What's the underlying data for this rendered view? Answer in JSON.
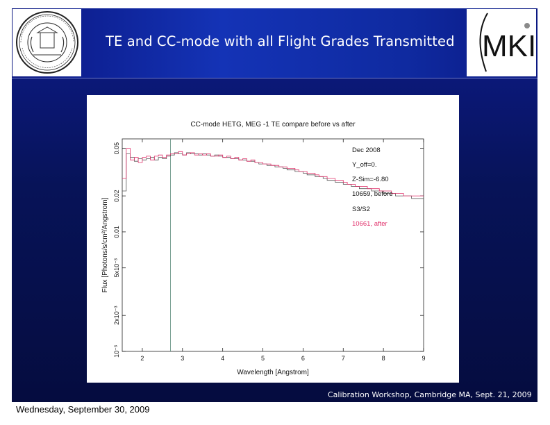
{
  "slide": {
    "title": "TE and CC-mode with all Flight Grades Transmitted",
    "footer": "Calibration Workshop, Cambridge MA, Sept. 21, 2009",
    "date_caption": "Wednesday, September 30, 2009",
    "logos": {
      "left": "mit-seal-logo",
      "right": "mki-logo",
      "right_text": "MKI"
    }
  },
  "chart_data": {
    "type": "line",
    "title": "CC-mode HETG, MEG -1 TE compare before vs after",
    "xlabel": "Wavelength [Angstrom]",
    "ylabel": "Flux [Photons/s/cm²/Angstrom]",
    "xlim": [
      1.5,
      9
    ],
    "ylim": [
      0.001,
      0.06
    ],
    "y_scale": "log",
    "x_ticks": [
      "2",
      "3",
      "4",
      "5",
      "6",
      "7",
      "8",
      "9"
    ],
    "y_ticks": [
      {
        "value": 0.001,
        "label": "10⁻³"
      },
      {
        "value": 0.002,
        "label": "2x10⁻³"
      },
      {
        "value": 0.005,
        "label": "5x10⁻³"
      },
      {
        "value": 0.01,
        "label": "0.01"
      },
      {
        "value": 0.02,
        "label": "0.02"
      },
      {
        "value": 0.05,
        "label": "0.05"
      }
    ],
    "annotations": [
      "Dec 2008",
      "Y_off=0.",
      "Z-Sim=-6.80",
      "10659, before",
      "S3/S2",
      "10661, after"
    ],
    "vertical_line_x": 2.7,
    "colors": {
      "before": "#555555",
      "after": "#e0306a",
      "vline": "#5a8a7a"
    },
    "x": [
      1.55,
      1.65,
      1.75,
      1.85,
      1.95,
      2.05,
      2.15,
      2.25,
      2.35,
      2.45,
      2.55,
      2.65,
      2.75,
      2.85,
      2.95,
      3.05,
      3.15,
      3.25,
      3.35,
      3.45,
      3.55,
      3.65,
      3.75,
      3.85,
      3.95,
      4.05,
      4.15,
      4.25,
      4.35,
      4.45,
      4.55,
      4.65,
      4.75,
      4.85,
      4.95,
      5.05,
      5.15,
      5.25,
      5.35,
      5.45,
      5.55,
      5.65,
      5.75,
      5.85,
      5.95,
      6.05,
      6.15,
      6.25,
      6.35,
      6.45,
      6.55,
      6.65,
      6.75,
      6.85,
      6.95,
      7.05,
      7.15,
      7.25,
      7.35,
      7.45,
      7.55,
      7.65,
      7.75,
      7.85,
      7.95,
      8.05,
      8.15,
      8.25,
      8.35,
      8.45,
      8.55,
      8.65,
      8.75,
      8.85,
      8.95
    ],
    "series": [
      {
        "name": "10659, before",
        "values": [
          0.022,
          0.045,
          0.042,
          0.039,
          0.041,
          0.04,
          0.041,
          0.042,
          0.04,
          0.042,
          0.041,
          0.043,
          0.044,
          0.046,
          0.045,
          0.044,
          0.046,
          0.045,
          0.045,
          0.044,
          0.045,
          0.044,
          0.043,
          0.044,
          0.043,
          0.042,
          0.042,
          0.041,
          0.041,
          0.04,
          0.04,
          0.039,
          0.039,
          0.038,
          0.037,
          0.037,
          0.036,
          0.036,
          0.035,
          0.035,
          0.034,
          0.033,
          0.033,
          0.032,
          0.032,
          0.031,
          0.03,
          0.03,
          0.029,
          0.029,
          0.028,
          0.027,
          0.027,
          0.026,
          0.026,
          0.025,
          0.025,
          0.024,
          0.024,
          0.023,
          0.023,
          0.023,
          0.022,
          0.022,
          0.022,
          0.021,
          0.021,
          0.021,
          0.02,
          0.02,
          0.02,
          0.02,
          0.019,
          0.019,
          0.019
        ]
      },
      {
        "name": "10661, after",
        "values": [
          0.028,
          0.05,
          0.04,
          0.042,
          0.038,
          0.042,
          0.043,
          0.04,
          0.043,
          0.044,
          0.042,
          0.044,
          0.045,
          0.045,
          0.047,
          0.044,
          0.045,
          0.046,
          0.044,
          0.045,
          0.044,
          0.045,
          0.043,
          0.043,
          0.044,
          0.042,
          0.043,
          0.041,
          0.042,
          0.04,
          0.041,
          0.039,
          0.04,
          0.038,
          0.038,
          0.037,
          0.037,
          0.036,
          0.036,
          0.035,
          0.035,
          0.034,
          0.034,
          0.033,
          0.032,
          0.032,
          0.031,
          0.031,
          0.03,
          0.029,
          0.029,
          0.028,
          0.028,
          0.027,
          0.027,
          0.026,
          0.025,
          0.025,
          0.024,
          0.024,
          0.024,
          0.023,
          0.023,
          0.023,
          0.022,
          0.022,
          0.022,
          0.021,
          0.021,
          0.021,
          0.02,
          0.02,
          0.02,
          0.02,
          0.02
        ]
      }
    ]
  }
}
